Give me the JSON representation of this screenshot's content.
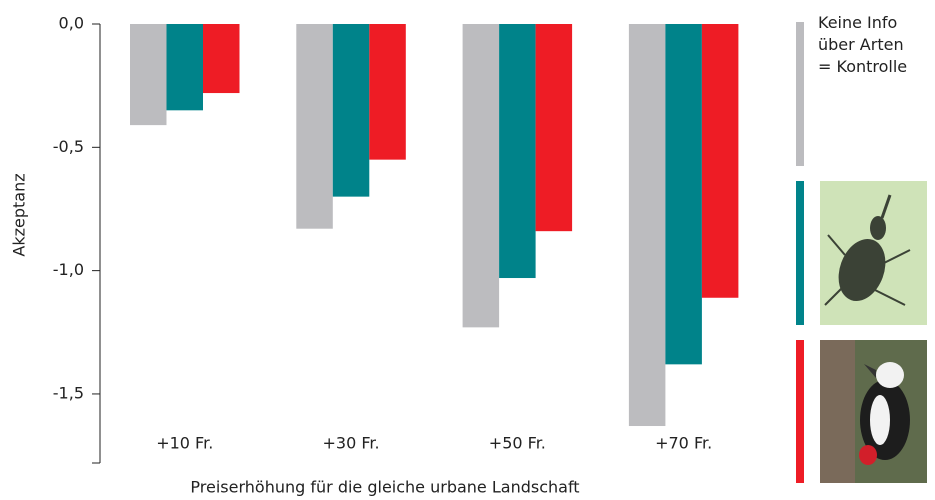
{
  "chart_data": {
    "type": "bar",
    "categories": [
      "+10 Fr.",
      "+30 Fr.",
      "+50 Fr.",
      "+70 Fr."
    ],
    "series": [
      {
        "name": "Keine Info über Arten = Kontrolle",
        "color": "#bcbcbf",
        "values": [
          -0.41,
          -0.83,
          -1.23,
          -1.63
        ]
      },
      {
        "color": "#00838a",
        "values": [
          -0.35,
          -0.7,
          -1.03,
          -1.38
        ]
      },
      {
        "color": "#ee1c25",
        "values": [
          -0.28,
          -0.55,
          -0.84,
          -1.11
        ]
      }
    ],
    "ylim": [
      -1.78,
      0
    ],
    "yticks": [
      {
        "value": 0,
        "label": "0,0"
      },
      {
        "value": -0.5,
        "label": "-0,5"
      },
      {
        "value": -1.0,
        "label": "-1,0"
      },
      {
        "value": -1.5,
        "label": "-1,5"
      }
    ],
    "ylabel": "Akzeptanz",
    "xlabel": "Preiserhöhung für die gleiche urbane Landschaft"
  }
}
